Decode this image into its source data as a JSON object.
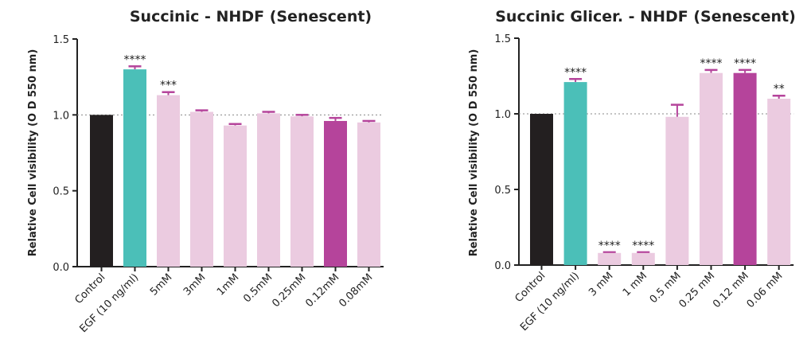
{
  "chart_data": [
    {
      "type": "bar",
      "title": "Succinic - NHDF (Senescent)",
      "ylabel": "Relative Cell visibility (O D 550 nm)",
      "ylim": [
        0,
        1.5
      ],
      "yticks": [
        "0.0",
        "0.5",
        "1.0",
        "1.5"
      ],
      "reference_line": 1.0,
      "categories": [
        "Control",
        "EGF (10 ng/ml)",
        "5mM",
        "3mM",
        "1mM",
        "0.5mM",
        "0.25mM",
        "0.12mM",
        "0.08mM"
      ],
      "values": [
        1.0,
        1.3,
        1.13,
        1.02,
        0.93,
        1.01,
        0.99,
        0.96,
        0.95
      ],
      "errors": [
        0,
        0.02,
        0.02,
        0.01,
        0.01,
        0.01,
        0.01,
        0.02,
        0.01
      ],
      "significance": [
        "",
        "****",
        "***",
        "",
        "",
        "",
        "",
        "",
        ""
      ],
      "colors": [
        "#231f20",
        "#4bbfb8",
        "#ebcbe0",
        "#ebcbe0",
        "#ebcbe0",
        "#ebcbe0",
        "#ebcbe0",
        "#b5449b",
        "#ebcbe0"
      ]
    },
    {
      "type": "bar",
      "title": "Succinic Glicer. - NHDF (Senescent)",
      "ylabel": "Relative Cell visibility (O D 550 nm)",
      "ylim": [
        0,
        1.5
      ],
      "yticks": [
        "0.0",
        "0.5",
        "1.0",
        "1.5"
      ],
      "reference_line": 1.0,
      "categories": [
        "Control",
        "EGF (10 ng/ml)",
        "3 mM",
        "1 mM",
        "0.5 mM",
        "0.25 mM",
        "0.12 mM",
        "0.06 mM"
      ],
      "values": [
        1.0,
        1.21,
        0.08,
        0.08,
        0.98,
        1.27,
        1.27,
        1.1
      ],
      "errors": [
        0,
        0.02,
        0.005,
        0.005,
        0.08,
        0.02,
        0.02,
        0.02
      ],
      "significance": [
        "",
        "****",
        "****",
        "****",
        "",
        "****",
        "****",
        "**"
      ],
      "colors": [
        "#231f20",
        "#4bbfb8",
        "#ebcbe0",
        "#ebcbe0",
        "#ebcbe0",
        "#ebcbe0",
        "#b5449b",
        "#ebcbe0"
      ]
    }
  ],
  "error_bar_color": "#b5449b",
  "axis_color": "#222222",
  "reference_line_color": "#888888"
}
